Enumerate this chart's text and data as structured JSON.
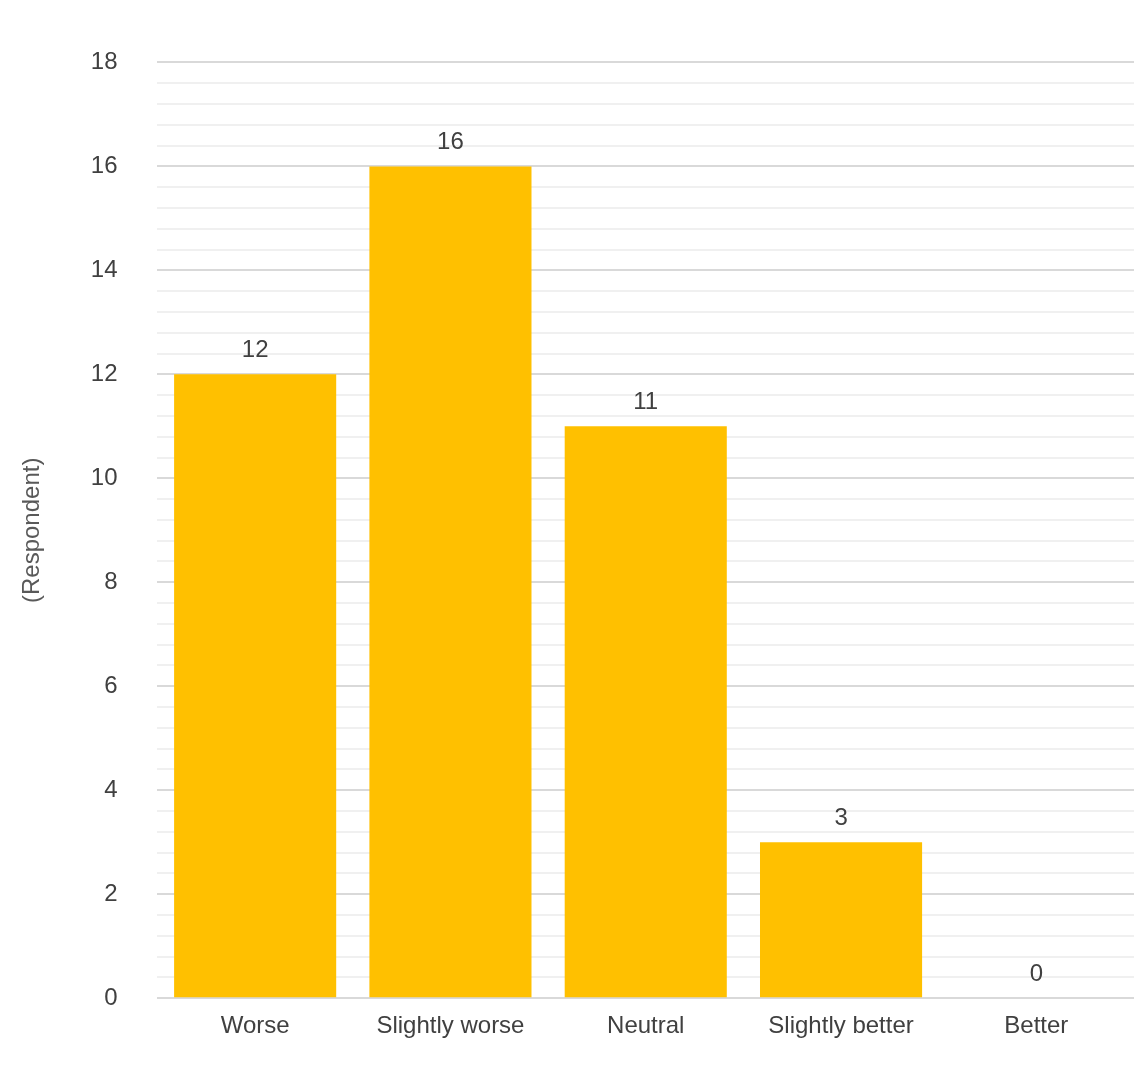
{
  "chart_data": {
    "type": "bar",
    "ylabel": "(Respondent)",
    "categories": [
      "Worse",
      "Slightly worse",
      "Neutral",
      "Slightly better",
      "Better"
    ],
    "values": [
      12,
      16,
      11,
      3,
      0
    ],
    "color": "#ffc000",
    "ylim": [
      0,
      18
    ],
    "yticks": [
      0,
      {
        "value": 0.4,
        "label": null
      },
      {
        "value": 0.8,
        "label": null
      },
      {
        "value": 1.2,
        "label": null
      },
      {
        "value": 1.6,
        "label": null
      },
      2,
      {
        "value": 2.4,
        "label": null
      },
      {
        "value": 2.8,
        "label": null
      },
      {
        "value": 3.2,
        "label": null
      },
      {
        "value": 3.6,
        "label": null
      },
      4,
      {
        "value": 4.4,
        "label": null
      },
      {
        "value": 4.8,
        "label": null
      },
      {
        "value": 5.2,
        "label": null
      },
      {
        "value": 5.6,
        "label": null
      },
      6,
      {
        "value": 6.4,
        "label": null
      },
      {
        "value": 6.8,
        "label": null
      },
      {
        "value": 7.2,
        "label": null
      },
      {
        "value": 7.6,
        "label": null
      },
      8,
      {
        "value": 8.4,
        "label": null
      },
      {
        "value": 8.8,
        "label": null
      },
      {
        "value": 9.2,
        "label": null
      },
      {
        "value": 9.6,
        "label": null
      },
      10,
      {
        "value": 10.4,
        "label": null
      },
      {
        "value": 10.8,
        "label": null
      },
      {
        "value": 11.2,
        "label": null
      },
      {
        "value": 11.6,
        "label": null
      },
      12,
      {
        "value": 12.4,
        "label": null
      },
      {
        "value": 12.8,
        "label": null
      },
      {
        "value": 13.2,
        "label": null
      },
      {
        "value": 13.6,
        "label": null
      },
      14,
      {
        "value": 14.4,
        "label": null
      },
      {
        "value": 14.8,
        "label": null
      },
      {
        "value": 15.2,
        "label": null
      },
      {
        "value": 15.6,
        "label": null
      },
      16,
      {
        "value": 16.4,
        "label": null
      },
      {
        "value": 16.8,
        "label": null
      },
      {
        "value": 17.2,
        "label": null
      },
      {
        "value": 17.6,
        "label": null
      },
      18
    ],
    "grid": "y",
    "data_labels": true,
    "legend": false
  }
}
